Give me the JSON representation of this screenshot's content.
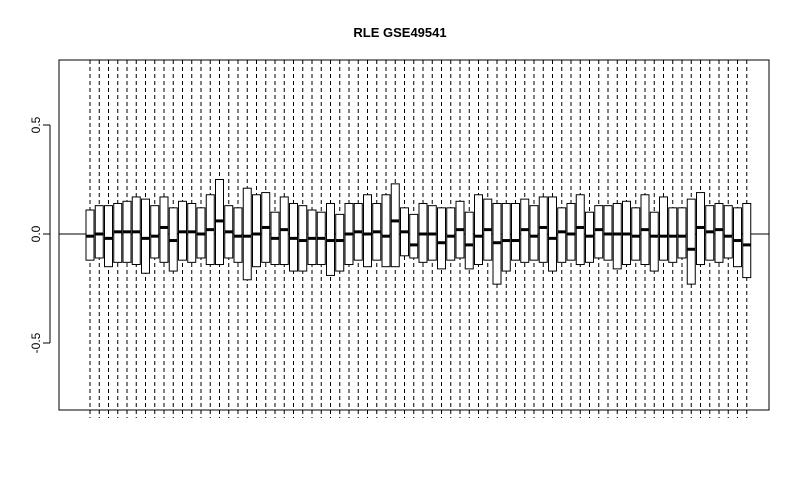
{
  "chart_data": {
    "type": "boxplot",
    "title": "RLE GSE49541",
    "xlabel": "",
    "ylabel": "",
    "ylim": [
      -0.8,
      0.8
    ],
    "yticks": [
      -0.5,
      0.0,
      0.5
    ],
    "ytick_labels": [
      "-0.5",
      "0.0",
      "0.5"
    ],
    "reference_line": 0,
    "grid": false,
    "legend": "none",
    "colors": {
      "box": "#000000",
      "background": "#ffffff"
    },
    "boxes": [
      {
        "q1": -0.12,
        "median": -0.01,
        "q3": 0.11
      },
      {
        "q1": -0.11,
        "median": 0.0,
        "q3": 0.13
      },
      {
        "q1": -0.15,
        "median": -0.02,
        "q3": 0.13
      },
      {
        "q1": -0.13,
        "median": 0.01,
        "q3": 0.14
      },
      {
        "q1": -0.13,
        "median": 0.01,
        "q3": 0.15
      },
      {
        "q1": -0.14,
        "median": 0.01,
        "q3": 0.17
      },
      {
        "q1": -0.18,
        "median": -0.02,
        "q3": 0.16
      },
      {
        "q1": -0.11,
        "median": -0.01,
        "q3": 0.13
      },
      {
        "q1": -0.13,
        "median": 0.03,
        "q3": 0.17
      },
      {
        "q1": -0.17,
        "median": -0.03,
        "q3": 0.12
      },
      {
        "q1": -0.12,
        "median": 0.01,
        "q3": 0.15
      },
      {
        "q1": -0.13,
        "median": 0.01,
        "q3": 0.14
      },
      {
        "q1": -0.11,
        "median": 0.0,
        "q3": 0.12
      },
      {
        "q1": -0.14,
        "median": 0.02,
        "q3": 0.18
      },
      {
        "q1": -0.14,
        "median": 0.06,
        "q3": 0.25
      },
      {
        "q1": -0.11,
        "median": 0.01,
        "q3": 0.13
      },
      {
        "q1": -0.13,
        "median": -0.01,
        "q3": 0.12
      },
      {
        "q1": -0.21,
        "median": -0.01,
        "q3": 0.21
      },
      {
        "q1": -0.15,
        "median": 0.0,
        "q3": 0.18
      },
      {
        "q1": -0.13,
        "median": 0.03,
        "q3": 0.19
      },
      {
        "q1": -0.14,
        "median": -0.02,
        "q3": 0.1
      },
      {
        "q1": -0.14,
        "median": 0.02,
        "q3": 0.17
      },
      {
        "q1": -0.17,
        "median": -0.02,
        "q3": 0.14
      },
      {
        "q1": -0.17,
        "median": -0.03,
        "q3": 0.13
      },
      {
        "q1": -0.14,
        "median": -0.02,
        "q3": 0.11
      },
      {
        "q1": -0.14,
        "median": -0.02,
        "q3": 0.1
      },
      {
        "q1": -0.19,
        "median": -0.03,
        "q3": 0.14
      },
      {
        "q1": -0.17,
        "median": -0.03,
        "q3": 0.09
      },
      {
        "q1": -0.14,
        "median": 0.0,
        "q3": 0.14
      },
      {
        "q1": -0.12,
        "median": 0.01,
        "q3": 0.14
      },
      {
        "q1": -0.15,
        "median": 0.0,
        "q3": 0.18
      },
      {
        "q1": -0.12,
        "median": 0.01,
        "q3": 0.14
      },
      {
        "q1": -0.15,
        "median": -0.01,
        "q3": 0.18
      },
      {
        "q1": -0.15,
        "median": 0.06,
        "q3": 0.23
      },
      {
        "q1": -0.1,
        "median": 0.01,
        "q3": 0.12
      },
      {
        "q1": -0.11,
        "median": -0.05,
        "q3": 0.09
      },
      {
        "q1": -0.13,
        "median": 0.0,
        "q3": 0.14
      },
      {
        "q1": -0.12,
        "median": 0.0,
        "q3": 0.13
      },
      {
        "q1": -0.16,
        "median": -0.04,
        "q3": 0.12
      },
      {
        "q1": -0.12,
        "median": -0.01,
        "q3": 0.12
      },
      {
        "q1": -0.11,
        "median": 0.02,
        "q3": 0.15
      },
      {
        "q1": -0.16,
        "median": -0.05,
        "q3": 0.1
      },
      {
        "q1": -0.14,
        "median": -0.01,
        "q3": 0.18
      },
      {
        "q1": -0.12,
        "median": 0.02,
        "q3": 0.16
      },
      {
        "q1": -0.23,
        "median": -0.04,
        "q3": 0.14
      },
      {
        "q1": -0.17,
        "median": -0.03,
        "q3": 0.14
      },
      {
        "q1": -0.12,
        "median": -0.03,
        "q3": 0.14
      },
      {
        "q1": -0.13,
        "median": 0.02,
        "q3": 0.16
      },
      {
        "q1": -0.12,
        "median": -0.01,
        "q3": 0.13
      },
      {
        "q1": -0.13,
        "median": 0.03,
        "q3": 0.17
      },
      {
        "q1": -0.17,
        "median": -0.02,
        "q3": 0.17
      },
      {
        "q1": -0.13,
        "median": 0.01,
        "q3": 0.12
      },
      {
        "q1": -0.12,
        "median": 0.0,
        "q3": 0.14
      },
      {
        "q1": -0.14,
        "median": 0.03,
        "q3": 0.18
      },
      {
        "q1": -0.13,
        "median": -0.01,
        "q3": 0.1
      },
      {
        "q1": -0.11,
        "median": 0.02,
        "q3": 0.13
      },
      {
        "q1": -0.12,
        "median": 0.0,
        "q3": 0.13
      },
      {
        "q1": -0.16,
        "median": 0.0,
        "q3": 0.14
      },
      {
        "q1": -0.14,
        "median": 0.0,
        "q3": 0.15
      },
      {
        "q1": -0.12,
        "median": -0.01,
        "q3": 0.12
      },
      {
        "q1": -0.14,
        "median": 0.02,
        "q3": 0.18
      },
      {
        "q1": -0.17,
        "median": -0.01,
        "q3": 0.1
      },
      {
        "q1": -0.12,
        "median": -0.01,
        "q3": 0.17
      },
      {
        "q1": -0.13,
        "median": -0.01,
        "q3": 0.12
      },
      {
        "q1": -0.11,
        "median": -0.01,
        "q3": 0.12
      },
      {
        "q1": -0.23,
        "median": -0.07,
        "q3": 0.16
      },
      {
        "q1": -0.14,
        "median": 0.03,
        "q3": 0.19
      },
      {
        "q1": -0.12,
        "median": 0.01,
        "q3": 0.13
      },
      {
        "q1": -0.13,
        "median": 0.02,
        "q3": 0.14
      },
      {
        "q1": -0.11,
        "median": -0.01,
        "q3": 0.13
      },
      {
        "q1": -0.15,
        "median": -0.03,
        "q3": 0.12
      },
      {
        "q1": -0.2,
        "median": -0.05,
        "q3": 0.14
      }
    ]
  }
}
